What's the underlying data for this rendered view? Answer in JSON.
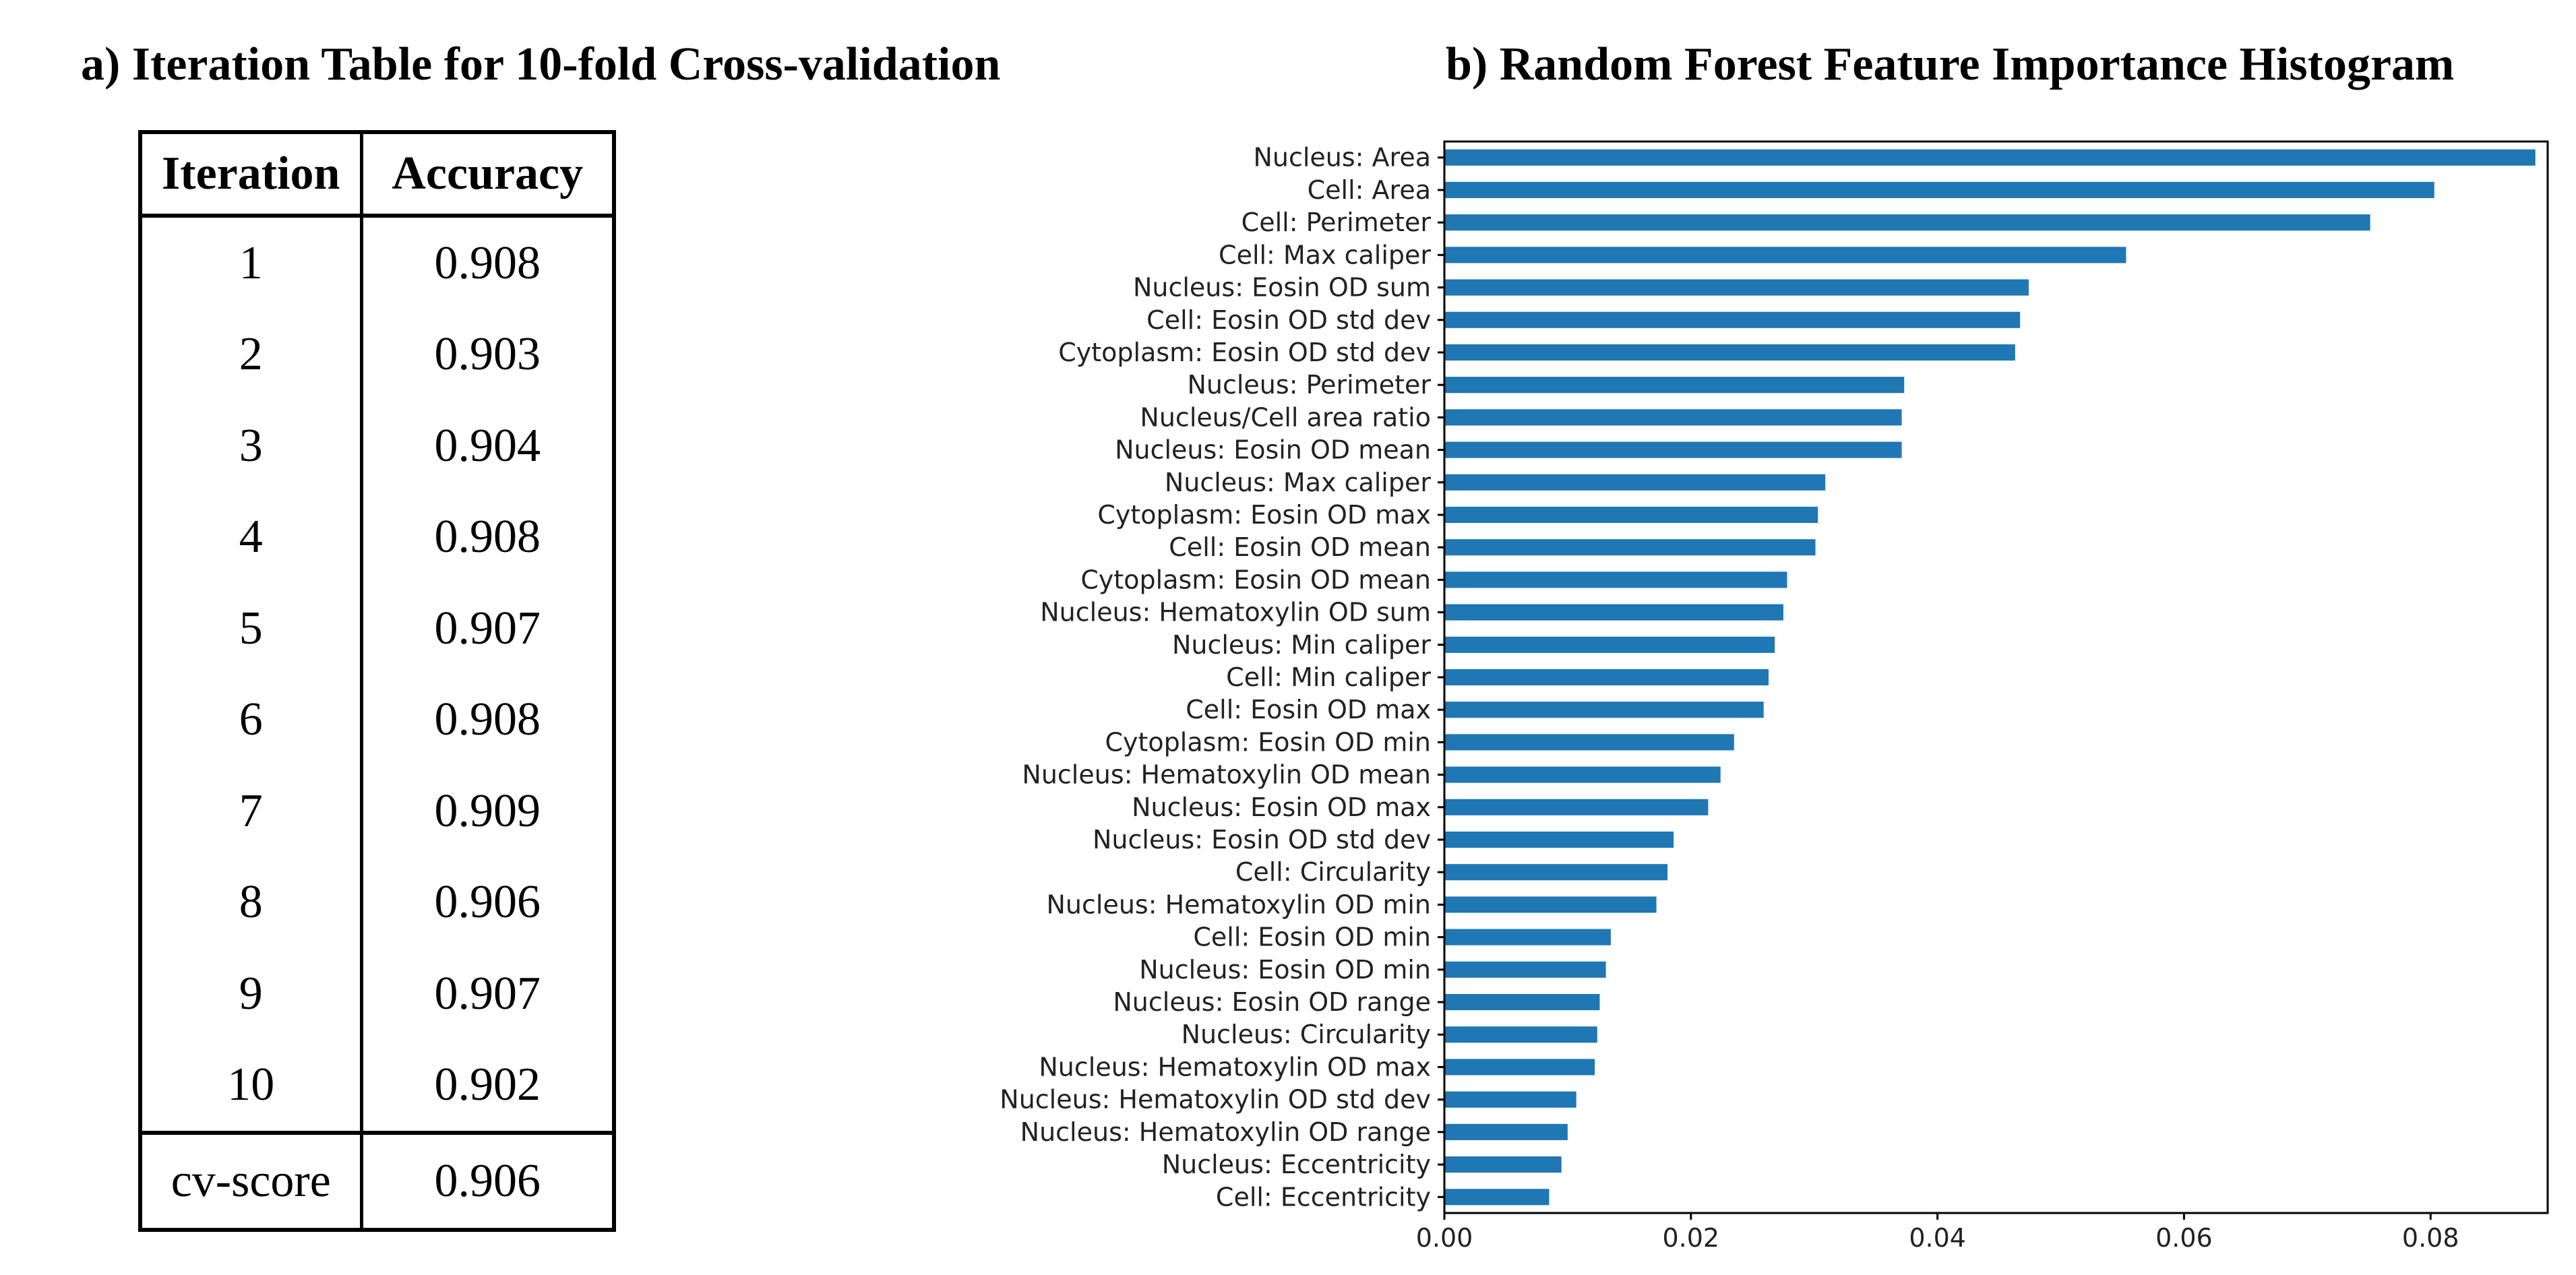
{
  "panel_a": {
    "title": "a) Iteration Table for 10-fold Cross-validation",
    "headers": [
      "Iteration",
      "Accuracy"
    ],
    "rows": [
      [
        "1",
        "0.908"
      ],
      [
        "2",
        "0.903"
      ],
      [
        "3",
        "0.904"
      ],
      [
        "4",
        "0.908"
      ],
      [
        "5",
        "0.907"
      ],
      [
        "6",
        "0.908"
      ],
      [
        "7",
        "0.909"
      ],
      [
        "8",
        "0.906"
      ],
      [
        "9",
        "0.907"
      ],
      [
        "10",
        "0.902"
      ]
    ],
    "footer": [
      "cv-score",
      "0.906"
    ]
  },
  "chart_data": {
    "type": "bar",
    "orientation": "horizontal",
    "title": "b) Random Forest Feature Importance Histogram",
    "xlabel": "",
    "ylabel": "",
    "xlim": [
      0,
      0.0895
    ],
    "xticks": [
      "0.00",
      "0.02",
      "0.04",
      "0.06",
      "0.08"
    ],
    "grid": false,
    "bar_color": "#1f77b4",
    "categories": [
      "Nucleus: Area",
      "Cell: Area",
      "Cell: Perimeter",
      "Cell: Max caliper",
      "Nucleus: Eosin OD sum",
      "Cell: Eosin OD std dev",
      "Cytoplasm: Eosin OD std dev",
      "Nucleus: Perimeter",
      "Nucleus/Cell area ratio",
      "Nucleus: Eosin OD mean",
      "Nucleus: Max caliper",
      "Cytoplasm: Eosin OD max",
      "Cell: Eosin OD mean",
      "Cytoplasm: Eosin OD mean",
      "Nucleus: Hematoxylin OD sum",
      "Nucleus: Min caliper",
      "Cell: Min caliper",
      "Cell: Eosin OD max",
      "Cytoplasm: Eosin OD min",
      "Nucleus: Hematoxylin OD mean",
      "Nucleus: Eosin OD max",
      "Nucleus: Eosin OD std dev",
      "Cell: Circularity",
      "Nucleus: Hematoxylin OD min",
      "Cell: Eosin OD min",
      "Nucleus: Eosin OD min",
      "Nucleus: Eosin OD range",
      "Nucleus: Circularity",
      "Nucleus: Hematoxylin OD max",
      "Nucleus: Hematoxylin OD std dev",
      "Nucleus: Hematoxylin OD range",
      "Nucleus: Eccentricity",
      "Cell: Eccentricity"
    ],
    "values": [
      0.0885,
      0.0803,
      0.0751,
      0.0553,
      0.0474,
      0.0467,
      0.0463,
      0.0373,
      0.0371,
      0.0371,
      0.0309,
      0.0303,
      0.0301,
      0.0278,
      0.0275,
      0.0268,
      0.0263,
      0.0259,
      0.0235,
      0.0224,
      0.0214,
      0.0186,
      0.0181,
      0.0172,
      0.0135,
      0.0131,
      0.0126,
      0.0124,
      0.0122,
      0.0107,
      0.01,
      0.0095,
      0.0085
    ]
  }
}
